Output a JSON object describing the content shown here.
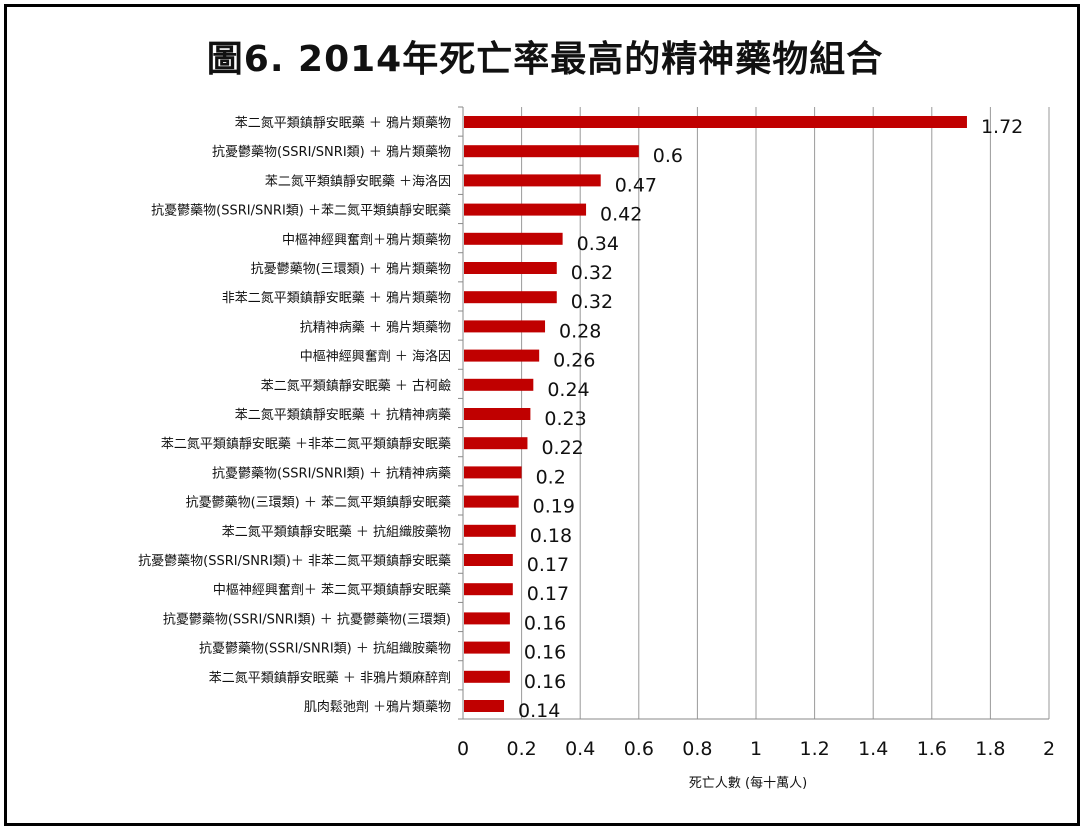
{
  "chart_data": {
    "type": "bar",
    "orientation": "horizontal",
    "title": "圖6. 2014年死亡率最高的精神藥物組合",
    "xlabel": "死亡人數 (每十萬人)",
    "ylabel": "",
    "xlim": [
      0,
      2
    ],
    "xticks": [
      "0",
      "0.2",
      "0.4",
      "0.6",
      "0.8",
      "1",
      "1.2",
      "1.4",
      "1.6",
      "1.8",
      "2"
    ],
    "grid": "vertical",
    "bar_color": "#c00000",
    "categories": [
      "苯二氮平類鎮靜安眠藥 ＋ 鴉片類藥物",
      "抗憂鬱藥物(SSRI/SNRI類) ＋ 鴉片類藥物",
      "苯二氮平類鎮靜安眠藥 ＋海洛因",
      "抗憂鬱藥物(SSRI/SNRI類) ＋苯二氮平類鎮靜安眠藥",
      "中樞神經興奮劑＋鴉片類藥物",
      "抗憂鬱藥物(三環類) ＋ 鴉片類藥物",
      "非苯二氮平類鎮靜安眠藥 ＋ 鴉片類藥物",
      "抗精神病藥 ＋ 鴉片類藥物",
      "中樞神經興奮劑 ＋ 海洛因",
      "苯二氮平類鎮靜安眠藥 ＋ 古柯鹼",
      "苯二氮平類鎮靜安眠藥 ＋ 抗精神病藥",
      "苯二氮平類鎮靜安眠藥 ＋非苯二氮平類鎮靜安眠藥",
      "抗憂鬱藥物(SSRI/SNRI類) ＋ 抗精神病藥",
      "抗憂鬱藥物(三環類) ＋ 苯二氮平類鎮靜安眠藥",
      "苯二氮平類鎮靜安眠藥 ＋ 抗組織胺藥物",
      "抗憂鬱藥物(SSRI/SNRI類)＋ 非苯二氮平類鎮靜安眠藥",
      "中樞神經興奮劑＋ 苯二氮平類鎮靜安眠藥",
      "抗憂鬱藥物(SSRI/SNRI類) ＋ 抗憂鬱藥物(三環類)",
      "抗憂鬱藥物(SSRI/SNRI類) ＋ 抗組織胺藥物",
      "苯二氮平類鎮靜安眠藥 ＋ 非鴉片類麻醉劑",
      "肌肉鬆弛劑 ＋鴉片類藥物"
    ],
    "values": [
      1.72,
      0.6,
      0.47,
      0.42,
      0.34,
      0.32,
      0.32,
      0.28,
      0.26,
      0.24,
      0.23,
      0.22,
      0.2,
      0.19,
      0.18,
      0.17,
      0.17,
      0.16,
      0.16,
      0.16,
      0.14
    ],
    "value_labels": [
      "1.72",
      "0.6",
      "0.47",
      "0.42",
      "0.34",
      "0.32",
      "0.32",
      "0.28",
      "0.26",
      "0.24",
      "0.23",
      "0.22",
      "0.2",
      "0.19",
      "0.18",
      "0.17",
      "0.17",
      "0.16",
      "0.16",
      "0.16",
      "0.14"
    ]
  }
}
